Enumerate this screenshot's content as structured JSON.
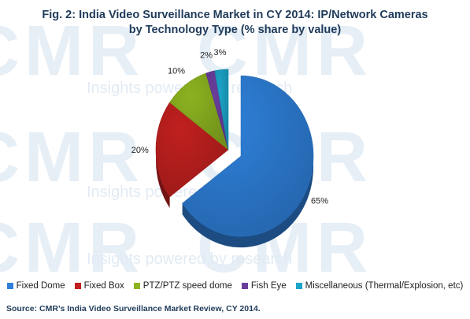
{
  "watermark": {
    "brand": "CMR",
    "tagline": "Insights powered by research"
  },
  "title_line1": "Fig. 2: India Video Surveillance Market in CY 2014: IP/Network Cameras",
  "title_line2": "by Technology Type (% share by value)",
  "source": "Source: CMR’s India Video Surveillance Market Review, CY 2014.",
  "chart_data": {
    "type": "pie",
    "title": "Fig. 2: India Video Surveillance Market in CY 2014: IP/Network Cameras by Technology Type (% share by value)",
    "slices": [
      {
        "label": "Fixed Dome",
        "value": 65,
        "display": "65%",
        "color": "#2e7fd8"
      },
      {
        "label": "Fixed Box",
        "value": 20,
        "display": "20%",
        "color": "#c0201f"
      },
      {
        "label": "PTZ/PTZ speed dome",
        "value": 10,
        "display": "10%",
        "color": "#8cb320"
      },
      {
        "label": "Fish Eye",
        "value": 2,
        "display": "2%",
        "color": "#6a3e9c"
      },
      {
        "label": "Miscellaneous (Thermal/Explosion,  etc)",
        "value": 3,
        "display": "3%",
        "color": "#1ba5c9"
      }
    ],
    "legend_position": "bottom",
    "exploded": "Fixed Dome",
    "style": "3D"
  }
}
